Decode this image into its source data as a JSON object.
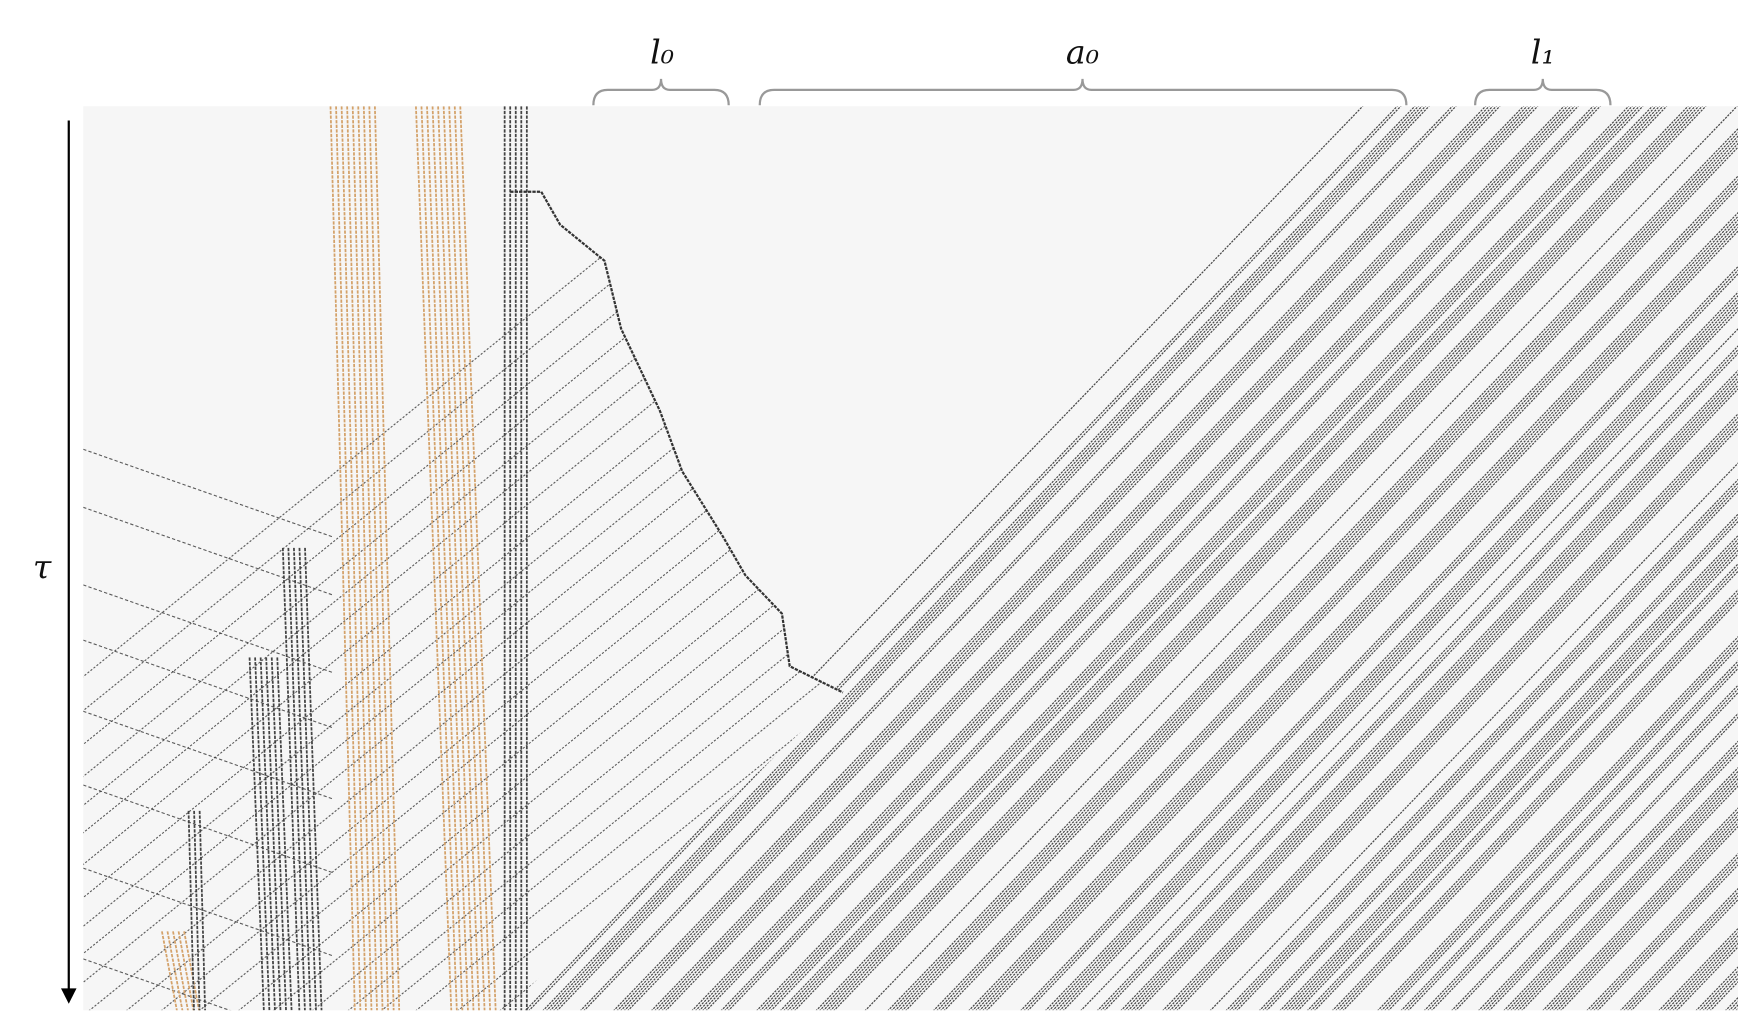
{
  "labels": {
    "left_top": "l₀",
    "middle_top": "a₀",
    "right_top": "l₁",
    "time_axis": "τ"
  }
}
